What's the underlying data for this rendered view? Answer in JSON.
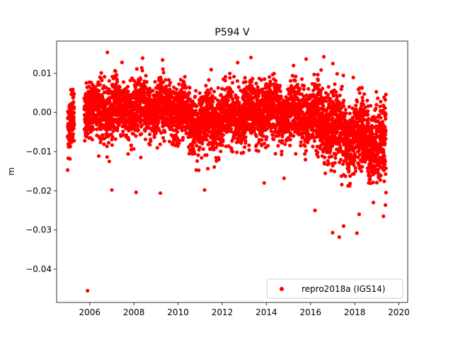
{
  "chart_data": {
    "type": "scatter",
    "title": "P594 V",
    "xlabel": "",
    "ylabel": "m",
    "xlim": [
      2004.5,
      2020.4
    ],
    "ylim": [
      -0.0485,
      0.0182
    ],
    "xticks": [
      2006,
      2008,
      2010,
      2012,
      2014,
      2016,
      2018,
      2020
    ],
    "yticks": [
      0.01,
      0.0,
      -0.01,
      -0.02,
      -0.03,
      -0.04
    ],
    "ytick_labels": [
      "0.01",
      "0.00",
      "−0.01",
      "−0.02",
      "−0.03",
      "−0.04"
    ],
    "grid": false,
    "legend_position": "lower-right",
    "series": [
      {
        "name": "repro2018a (IGS14)",
        "color": "#ff0000",
        "marker": "point",
        "trend_x": [
          2005.0,
          2005.2,
          2005.6,
          2006.0,
          2006.5,
          2007.0,
          2007.5,
          2008.0,
          2008.5,
          2009.0,
          2009.5,
          2010.0,
          2010.5,
          2011.0,
          2011.5,
          2012.0,
          2012.5,
          2013.0,
          2013.5,
          2014.0,
          2014.5,
          2015.0,
          2015.5,
          2016.0,
          2016.5,
          2017.0,
          2017.5,
          2018.0,
          2018.5,
          2019.0,
          2019.4
        ],
        "trend_y": [
          -0.005,
          -0.002,
          0.0,
          0.0,
          0.0005,
          0.001,
          0.0005,
          0.001,
          0.0015,
          0.0005,
          0.001,
          -0.0005,
          -0.001,
          -0.003,
          -0.002,
          -0.002,
          -0.001,
          -0.001,
          0.0,
          0.0,
          0.0005,
          0.0,
          0.0,
          -0.001,
          -0.002,
          -0.004,
          -0.006,
          -0.007,
          -0.006,
          -0.008,
          -0.009
        ],
        "outliers": [
          {
            "x": 2005.9,
            "y": -0.0455
          },
          {
            "x": 2006.8,
            "y": 0.0153
          },
          {
            "x": 2016.6,
            "y": 0.0142
          },
          {
            "x": 2013.3,
            "y": 0.014
          },
          {
            "x": 2015.8,
            "y": 0.0136
          },
          {
            "x": 2009.3,
            "y": 0.0134
          },
          {
            "x": 2012.7,
            "y": 0.0127
          },
          {
            "x": 2011.5,
            "y": 0.0109
          },
          {
            "x": 2017.0,
            "y": -0.0307
          },
          {
            "x": 2017.3,
            "y": -0.0318
          },
          {
            "x": 2018.1,
            "y": -0.0308
          },
          {
            "x": 2017.5,
            "y": -0.029
          },
          {
            "x": 2019.3,
            "y": -0.0265
          },
          {
            "x": 2016.2,
            "y": -0.025
          },
          {
            "x": 2007.0,
            "y": -0.0198
          },
          {
            "x": 2008.1,
            "y": -0.0204
          },
          {
            "x": 2009.2,
            "y": -0.0206
          },
          {
            "x": 2011.2,
            "y": -0.0198
          },
          {
            "x": 2018.2,
            "y": -0.026
          },
          {
            "x": 2005.0,
            "y": -0.0147
          },
          {
            "x": 2013.9,
            "y": -0.018
          },
          {
            "x": 2014.8,
            "y": -0.0168
          }
        ]
      }
    ]
  }
}
